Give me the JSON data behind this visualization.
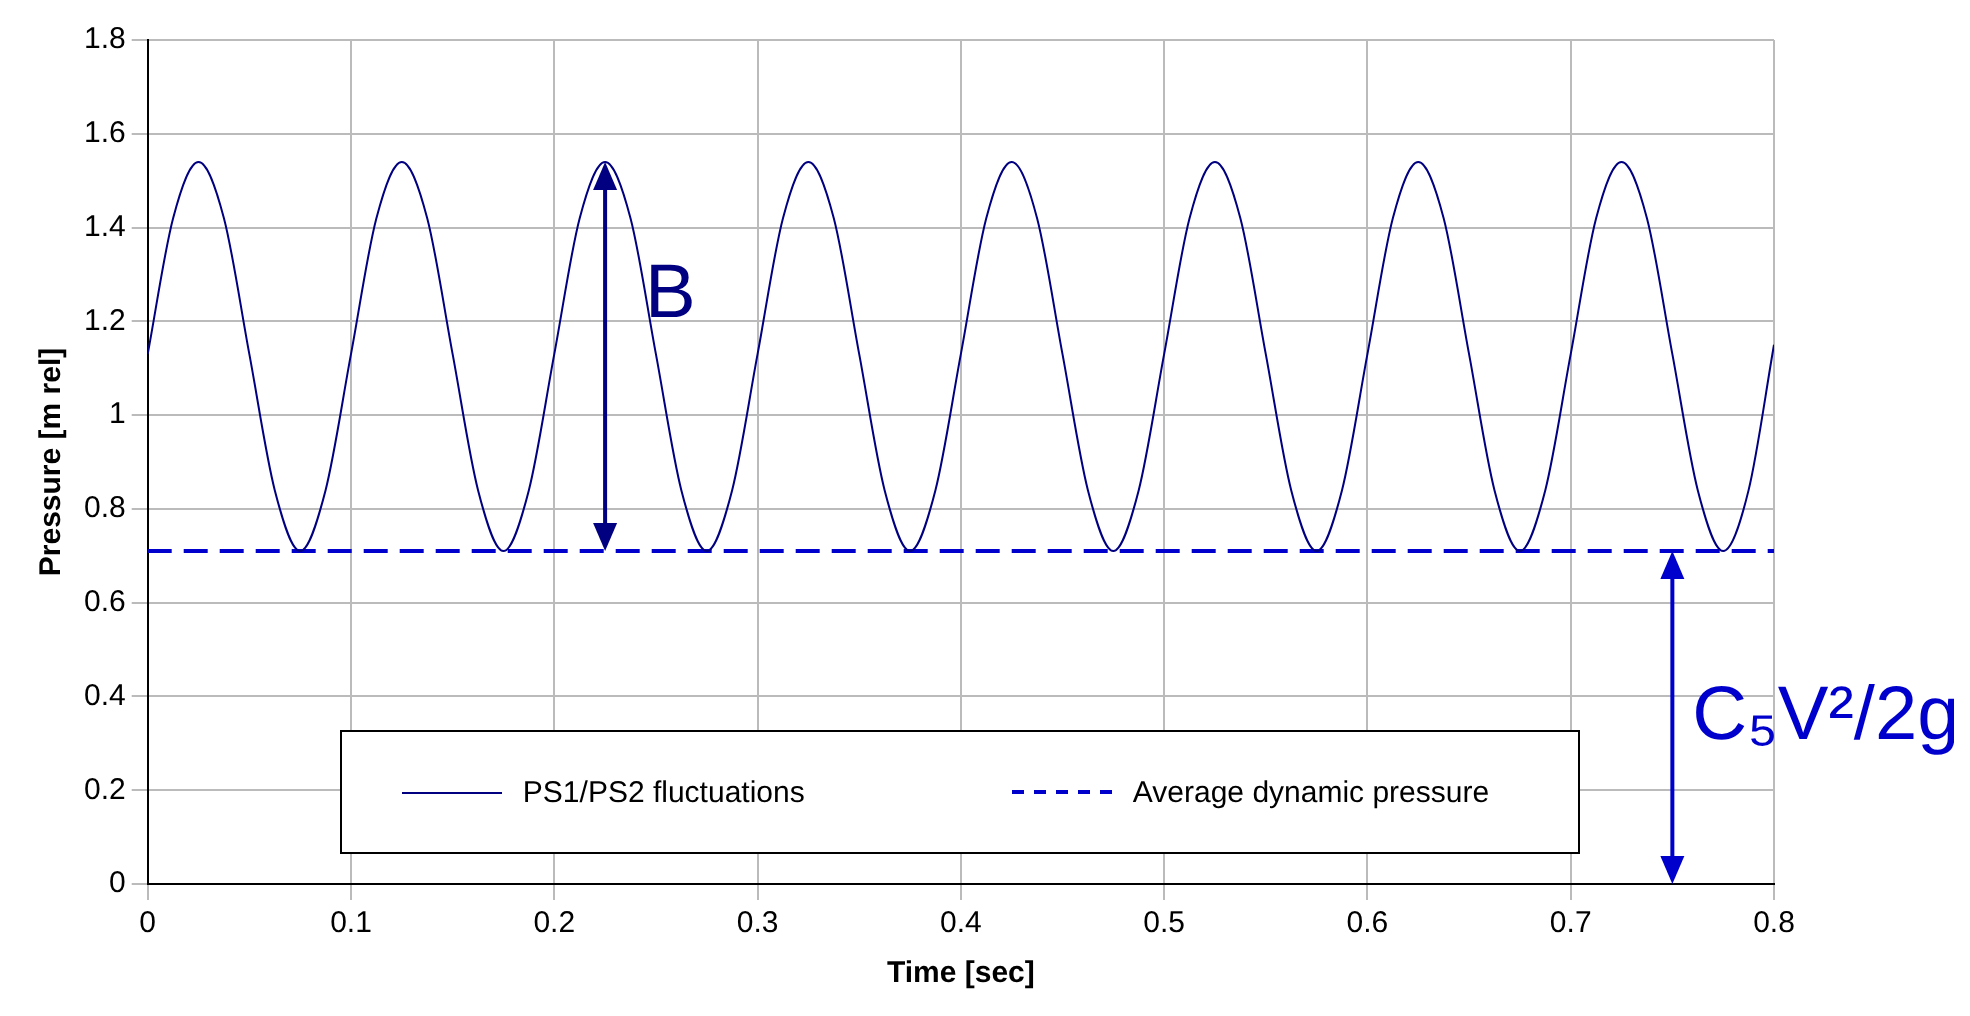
{
  "chart_data": {
    "type": "line",
    "xlabel": "Time [sec]",
    "ylabel": "Pressure [m rel]",
    "xlim": [
      0,
      0.8
    ],
    "xticks": [
      0,
      0.1,
      0.2,
      0.3,
      0.4,
      0.5,
      0.6,
      0.7,
      0.8
    ],
    "ylim": [
      0,
      1.8
    ],
    "yticks": [
      0,
      0.2,
      0.4,
      0.6,
      0.8,
      1,
      1.2,
      1.4,
      1.6,
      1.8
    ],
    "grid": true,
    "legend": "bottom",
    "marker": "none",
    "series": [
      {
        "name": "PS1/PS2 fluctuations",
        "color": "#000080",
        "line_style": "solid",
        "x": [
          0,
          0.0125,
          0.025,
          0.0375,
          0.05,
          0.0625,
          0.075,
          0.0875,
          0.1,
          0.1125,
          0.125,
          0.1375,
          0.15,
          0.1625,
          0.175,
          0.1875,
          0.2,
          0.2125,
          0.225,
          0.2375,
          0.25,
          0.2625,
          0.275,
          0.2875,
          0.3,
          0.3125,
          0.325,
          0.3375,
          0.35,
          0.3625,
          0.375,
          0.3875,
          0.4,
          0.4125,
          0.425,
          0.4375,
          0.45,
          0.4625,
          0.475,
          0.4875,
          0.5,
          0.5125,
          0.525,
          0.5375,
          0.55,
          0.5625,
          0.575,
          0.5875,
          0.6,
          0.6125,
          0.625,
          0.6375,
          0.65,
          0.6625,
          0.675,
          0.6875,
          0.7,
          0.7125,
          0.725,
          0.7375,
          0.75,
          0.7625,
          0.775,
          0.7875,
          0.8
        ],
        "values": [
          1.13,
          1.42,
          1.54,
          1.42,
          1.13,
          0.84,
          0.71,
          0.84,
          1.13,
          1.42,
          1.54,
          1.42,
          1.13,
          0.84,
          0.71,
          0.84,
          1.13,
          1.42,
          1.54,
          1.42,
          1.13,
          0.84,
          0.71,
          0.84,
          1.13,
          1.42,
          1.54,
          1.42,
          1.13,
          0.84,
          0.71,
          0.84,
          1.13,
          1.42,
          1.54,
          1.42,
          1.13,
          0.84,
          0.71,
          0.84,
          1.13,
          1.42,
          1.54,
          1.42,
          1.13,
          0.84,
          0.71,
          0.84,
          1.13,
          1.42,
          1.54,
          1.42,
          1.13,
          0.84,
          0.71,
          0.84,
          1.13,
          1.42,
          1.54,
          1.42,
          1.13,
          0.84,
          0.71,
          0.84,
          1.15
        ]
      },
      {
        "name": "Average dynamic pressure",
        "color": "#0000cc",
        "line_style": "dashed",
        "x": [
          0,
          0.8
        ],
        "values": [
          0.71,
          0.71
        ]
      }
    ],
    "annotations": [
      {
        "text": "B",
        "x": 0.225,
        "y": 1.54
      },
      {
        "text": "C₅V²/2g",
        "x": 0.75,
        "y": 0.71
      }
    ]
  }
}
